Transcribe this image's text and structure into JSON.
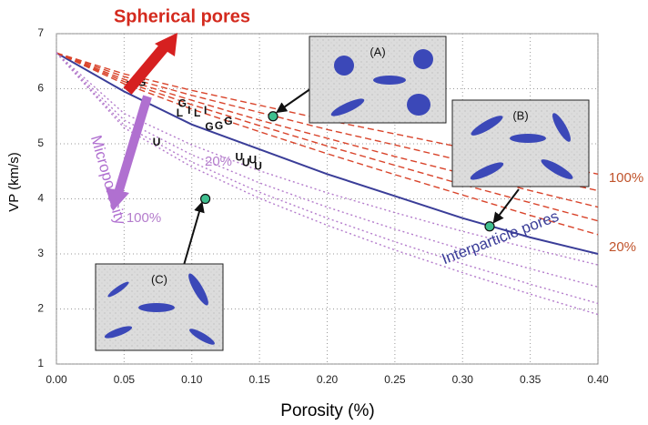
{
  "chart_data": {
    "type": "line",
    "x_label": "Porosity (%)",
    "y_label": "VP (km/s)",
    "xlim": [
      0,
      0.4
    ],
    "ylim": [
      1,
      7
    ],
    "xticks": [
      {
        "value": 0,
        "label": "0.00"
      },
      {
        "value": 0.05,
        "label": "0.05"
      },
      {
        "value": 0.1,
        "label": "0.10"
      },
      {
        "value": 0.15,
        "label": "0.15"
      },
      {
        "value": 0.2,
        "label": "0.20"
      },
      {
        "value": 0.25,
        "label": "0.25"
      },
      {
        "value": 0.3,
        "label": "0.30"
      },
      {
        "value": 0.35,
        "label": "0.35"
      },
      {
        "value": 0.4,
        "label": "0.40"
      }
    ],
    "yticks": [
      1,
      2,
      3,
      4,
      5,
      6,
      7
    ],
    "grid": true,
    "x": [
      0,
      0.05,
      0.1,
      0.15,
      0.2,
      0.25,
      0.3,
      0.35,
      0.4
    ],
    "series": [
      {
        "color": "#3a3d98",
        "style": "solid",
        "values": [
          6.65,
          5.95,
          5.35,
          4.9,
          4.45,
          4.05,
          3.65,
          3.3,
          3.0
        ]
      },
      {
        "color": "#d9442b",
        "style": "dashed",
        "values": [
          6.65,
          6.27,
          5.97,
          5.7,
          5.43,
          5.18,
          4.93,
          4.69,
          4.45
        ]
      },
      {
        "color": "#d9442b",
        "style": "dashed",
        "values": [
          6.65,
          6.22,
          5.88,
          5.57,
          5.26,
          4.98,
          4.69,
          4.42,
          4.15
        ]
      },
      {
        "color": "#d9442b",
        "style": "dashed",
        "values": [
          6.65,
          6.17,
          5.79,
          5.43,
          5.1,
          4.77,
          4.46,
          4.15,
          3.85
        ]
      },
      {
        "color": "#d9442b",
        "style": "dashed",
        "values": [
          6.65,
          6.13,
          5.71,
          5.33,
          4.96,
          4.61,
          4.26,
          3.93,
          3.6
        ]
      },
      {
        "color": "#d9442b",
        "style": "dashed",
        "values": [
          6.65,
          6.09,
          5.63,
          5.22,
          4.82,
          4.44,
          4.07,
          3.7,
          3.35
        ]
      },
      {
        "color": "#b47ccc",
        "style": "dotted",
        "values": [
          6.65,
          5.55,
          4.98,
          4.51,
          4.11,
          3.75,
          3.41,
          3.1,
          2.8
        ]
      },
      {
        "color": "#b47ccc",
        "style": "dotted",
        "values": [
          6.65,
          5.43,
          4.8,
          4.29,
          3.85,
          3.45,
          3.08,
          2.73,
          2.4
        ]
      },
      {
        "color": "#b47ccc",
        "style": "dotted",
        "values": [
          6.65,
          5.34,
          4.67,
          4.12,
          3.65,
          3.22,
          2.82,
          2.45,
          2.1
        ]
      },
      {
        "color": "#b47ccc",
        "style": "dotted",
        "values": [
          6.65,
          5.29,
          4.58,
          4.01,
          3.52,
          3.07,
          2.66,
          2.27,
          1.9
        ]
      }
    ],
    "points": {
      "color": "#3fbf8f",
      "x": [
        0.16,
        0.32,
        0.11
      ],
      "values": [
        5.5,
        3.5,
        4.0
      ]
    },
    "letters": [
      {
        "text": "L",
        "x": 0.054,
        "y": 6.05
      },
      {
        "text": "G",
        "x": 0.063,
        "y": 6.1
      },
      {
        "text": "G",
        "x": 0.093,
        "y": 5.72
      },
      {
        "text": "L",
        "x": 0.091,
        "y": 5.55
      },
      {
        "text": "I",
        "x": 0.098,
        "y": 5.6
      },
      {
        "text": "L",
        "x": 0.104,
        "y": 5.55
      },
      {
        "text": "I",
        "x": 0.11,
        "y": 5.6
      },
      {
        "text": "G",
        "x": 0.113,
        "y": 5.3
      },
      {
        "text": "G",
        "x": 0.12,
        "y": 5.32
      },
      {
        "text": "G",
        "x": 0.127,
        "y": 5.4
      },
      {
        "text": "U",
        "x": 0.074,
        "y": 5.02
      },
      {
        "text": "U",
        "x": 0.135,
        "y": 4.75
      },
      {
        "text": "U",
        "x": 0.14,
        "y": 4.65
      },
      {
        "text": "U",
        "x": 0.145,
        "y": 4.7
      },
      {
        "text": "U",
        "x": 0.149,
        "y": 4.58
      }
    ],
    "annotations": [
      "Spherical pores",
      "Microporosity",
      "Interparticle pores",
      "100%",
      "20%",
      "100%",
      "20%"
    ],
    "insets": [
      "(A)",
      "(B)",
      "(C)"
    ]
  }
}
